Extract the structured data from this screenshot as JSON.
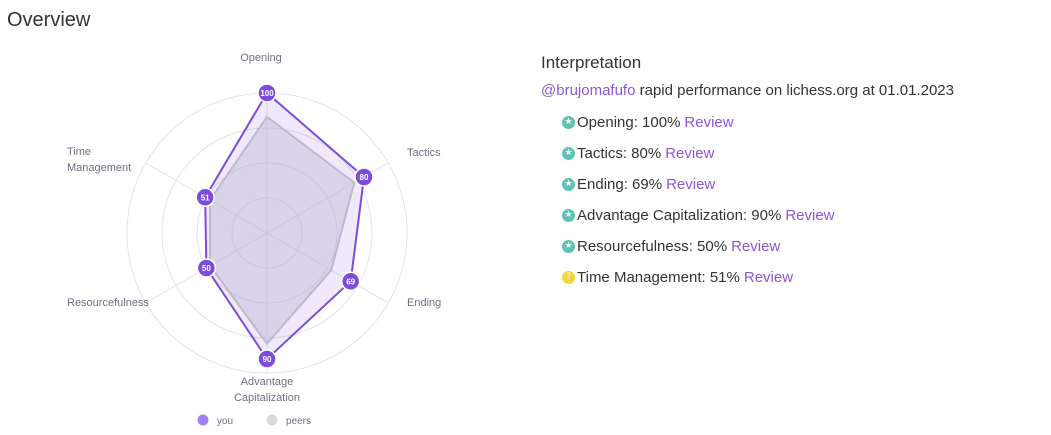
{
  "page": {
    "title": "Overview"
  },
  "chart_data": {
    "type": "radar",
    "axes": [
      "Opening",
      "Tactics",
      "Ending",
      "Advantage Capitalization",
      "Resourcefulness",
      "Time Management"
    ],
    "rmax": 100,
    "series": [
      {
        "name": "you",
        "values": [
          100,
          80,
          69,
          90,
          50,
          51
        ],
        "color": "#7c4ddb"
      },
      {
        "name": "peers",
        "values": [
          83,
          72,
          53,
          79,
          47,
          47
        ],
        "color": "#c9c9cf"
      }
    ],
    "legend": [
      "you",
      "peers"
    ],
    "legend_position": "bottom",
    "grid": true,
    "grid_rings": 4
  },
  "interpretation": {
    "title": "Interpretation",
    "username": "@brujomafufo",
    "subtitle": "rapid performance on lichess.org at 01.01.2023",
    "review_label": "Review",
    "items": [
      {
        "text": "Opening: 100%",
        "status": "good",
        "color": "#5fc3b2",
        "icon": "star-icon"
      },
      {
        "text": "Tactics: 80%",
        "status": "good",
        "color": "#5fc3b2",
        "icon": "star-icon"
      },
      {
        "text": "Ending: 69%",
        "status": "good",
        "color": "#5fc3b2",
        "icon": "star-icon"
      },
      {
        "text": "Advantage Capitalization: 90%",
        "status": "good",
        "color": "#5fc3b2",
        "icon": "star-icon"
      },
      {
        "text": "Resourcefulness: 50%",
        "status": "good",
        "color": "#5fc3b2",
        "icon": "star-icon"
      },
      {
        "text": "Time Management: 51%",
        "status": "neutral",
        "color": "#f2d43b",
        "icon": "question-icon"
      }
    ]
  }
}
